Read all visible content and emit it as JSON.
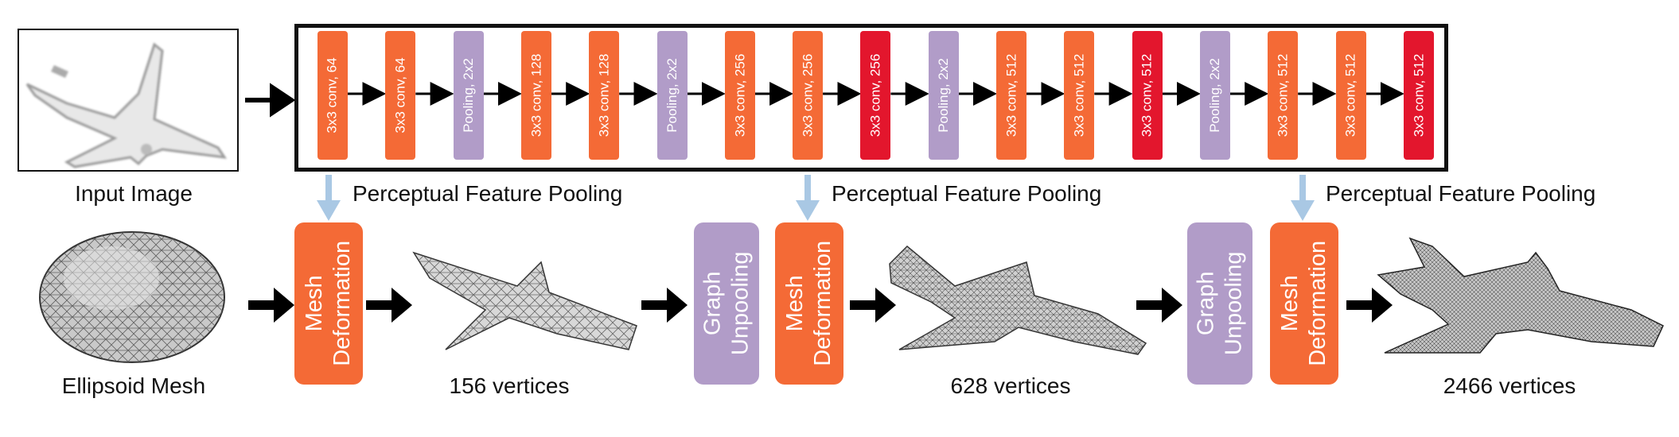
{
  "colors": {
    "conv": "#F46A36",
    "conv_last": "#E3162D",
    "pool": "#B19CC8",
    "block_deform": "#F46A36",
    "block_unpool": "#B19CC8",
    "feature_arrow": "#A9C8E4",
    "arrow": "#000000"
  },
  "input": {
    "caption": "Input Image"
  },
  "cnn": {
    "layers": [
      {
        "label": "3x3 conv, 64",
        "kind": "conv"
      },
      {
        "label": "3x3 conv, 64",
        "kind": "conv"
      },
      {
        "label": "Pooling, 2x2",
        "kind": "pool"
      },
      {
        "label": "3x3 conv, 128",
        "kind": "conv"
      },
      {
        "label": "3x3 conv, 128",
        "kind": "conv"
      },
      {
        "label": "Pooling, 2x2",
        "kind": "pool"
      },
      {
        "label": "3x3 conv, 256",
        "kind": "conv"
      },
      {
        "label": "3x3 conv, 256",
        "kind": "conv"
      },
      {
        "label": "3x3 conv, 256",
        "kind": "conv_last"
      },
      {
        "label": "Pooling, 2x2",
        "kind": "pool"
      },
      {
        "label": "3x3 conv, 512",
        "kind": "conv"
      },
      {
        "label": "3x3 conv, 512",
        "kind": "conv"
      },
      {
        "label": "3x3 conv, 512",
        "kind": "conv_last"
      },
      {
        "label": "Pooling, 2x2",
        "kind": "pool"
      },
      {
        "label": "3x3 conv, 512",
        "kind": "conv"
      },
      {
        "label": "3x3 conv, 512",
        "kind": "conv"
      },
      {
        "label": "3x3 conv, 512",
        "kind": "conv_last"
      }
    ]
  },
  "pooling_labels": {
    "first": "Perceptual Feature Pooling",
    "second": "Perceptual Feature Pooling",
    "third": "Perceptual Feature Pooling"
  },
  "blocks": {
    "deform_line1": "Mesh",
    "deform_line2": "Deformation",
    "unpool_line1": "Graph",
    "unpool_line2": "Unpooling"
  },
  "meshes": {
    "ellipsoid_caption": "Ellipsoid Mesh",
    "stage1_caption": "156 vertices",
    "stage2_caption": "628 vertices",
    "stage3_caption": "2466 vertices"
  }
}
